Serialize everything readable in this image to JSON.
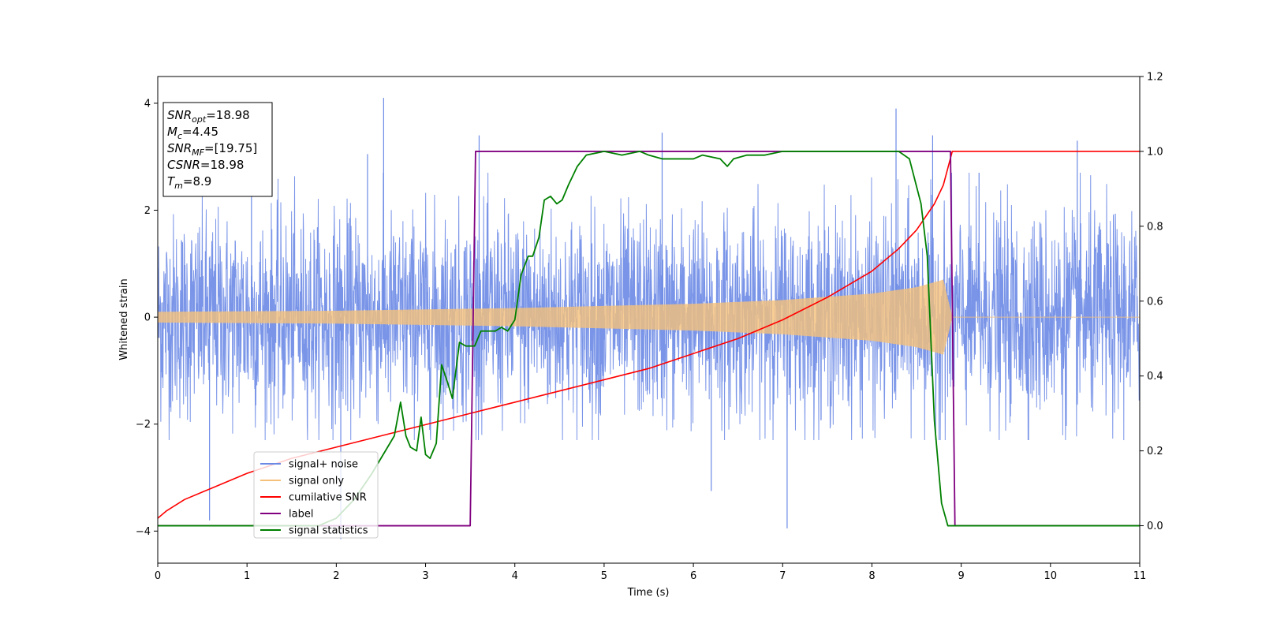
{
  "chart_data": {
    "type": "line",
    "xlabel": "Time (s)",
    "ylabel": "Whitened strain",
    "xlim": [
      0,
      11
    ],
    "ylim": [
      -4.6,
      4.5
    ],
    "y2lim": [
      -0.1,
      1.2
    ],
    "xticks": [
      0,
      1,
      2,
      3,
      4,
      5,
      6,
      7,
      8,
      9,
      10,
      11
    ],
    "yticks": [
      -4,
      -2,
      0,
      2,
      4
    ],
    "y2ticks": [
      0.0,
      0.2,
      0.4,
      0.6,
      0.8,
      1.0,
      1.2
    ],
    "xtick_labels": [
      "0",
      "1",
      "2",
      "3",
      "4",
      "5",
      "6",
      "7",
      "8",
      "9",
      "10",
      "11"
    ],
    "ytick_labels": [
      "−4",
      "−2",
      "0",
      "2",
      "4"
    ],
    "y2tick_labels": [
      "0.0",
      "0.2",
      "0.4",
      "0.6",
      "0.8",
      "1.0",
      "1.2"
    ],
    "grid": false,
    "legend_position": "lower-left",
    "legend": [
      {
        "label": "signal+ noise",
        "color": "#6b8ae5"
      },
      {
        "label": "signal only",
        "color": "#f5c07a"
      },
      {
        "label": "cumilative SNR",
        "color": "#ff0000"
      },
      {
        "label": "label",
        "color": "#800080"
      },
      {
        "label": "signal statistics",
        "color": "#008000"
      }
    ],
    "annotation": [
      {
        "main": "SNR",
        "sub": "opt",
        "value": "=18.98"
      },
      {
        "main": "M",
        "sub": "c",
        "value": "=4.45"
      },
      {
        "main": "SNR",
        "sub": "MF",
        "value": "=[19.75]"
      },
      {
        "main": "CSNR",
        "sub": "",
        "value": "=18.98"
      },
      {
        "main": "T",
        "sub": "m",
        "value": "=8.9"
      }
    ],
    "series": [
      {
        "name": "signal+ noise",
        "axis": "left",
        "color": "#6b8ae5",
        "description_of_values": "noise band roughly between -2.2 and 2.6 over 0-11 s, spikes up to about 4.1",
        "noise_sigma": 0.95,
        "peaks": [
          [
            0.58,
            -3.8
          ],
          [
            1.05,
            3.6
          ],
          [
            2.05,
            -4.15
          ],
          [
            2.35,
            3.05
          ],
          [
            2.53,
            4.1
          ],
          [
            3.6,
            3.4
          ],
          [
            5.65,
            3.45
          ],
          [
            6.2,
            -3.25
          ],
          [
            7.05,
            -3.95
          ],
          [
            8.27,
            3.9
          ],
          [
            8.68,
            3.4
          ],
          [
            9.2,
            2.7
          ],
          [
            10.3,
            3.3
          ]
        ]
      },
      {
        "name": "signal only",
        "axis": "left",
        "color": "#f5c07a",
        "description_of_values": "chirp, amplitude grows from about 0.1 at t=0 to about 0.7 near t=8.9, then 0",
        "amplitude_points": [
          [
            0,
            0.1
          ],
          [
            2,
            0.12
          ],
          [
            4,
            0.17
          ],
          [
            6,
            0.25
          ],
          [
            7,
            0.32
          ],
          [
            8,
            0.44
          ],
          [
            8.5,
            0.56
          ],
          [
            8.8,
            0.7
          ],
          [
            8.9,
            0.0
          ],
          [
            11,
            0.0
          ]
        ]
      },
      {
        "name": "cumilative SNR",
        "axis": "right",
        "color": "#ff0000",
        "x": [
          0,
          0.1,
          0.3,
          0.6,
          1.0,
          1.5,
          2.0,
          2.5,
          3.0,
          3.5,
          4.0,
          4.5,
          5.0,
          5.5,
          6.0,
          6.5,
          7.0,
          7.5,
          8.0,
          8.3,
          8.5,
          8.7,
          8.8,
          8.9,
          9.0,
          11.0
        ],
        "values": [
          0.02,
          0.04,
          0.07,
          0.1,
          0.14,
          0.18,
          0.21,
          0.24,
          0.27,
          0.3,
          0.33,
          0.36,
          0.39,
          0.42,
          0.46,
          0.5,
          0.55,
          0.61,
          0.68,
          0.74,
          0.79,
          0.86,
          0.91,
          1.0,
          1.0,
          1.0
        ]
      },
      {
        "name": "label",
        "axis": "right",
        "color": "#800080",
        "x": [
          0,
          3.5,
          3.56,
          8.88,
          8.93,
          11
        ],
        "values": [
          0,
          0,
          1,
          1,
          0,
          0
        ]
      },
      {
        "name": "signal statistics",
        "axis": "right",
        "color": "#008000",
        "x": [
          0,
          1.8,
          2.0,
          2.2,
          2.4,
          2.5,
          2.6,
          2.65,
          2.72,
          2.78,
          2.83,
          2.9,
          2.95,
          3.0,
          3.05,
          3.12,
          3.18,
          3.25,
          3.3,
          3.38,
          3.45,
          3.55,
          3.62,
          3.7,
          3.78,
          3.85,
          3.92,
          4.0,
          4.07,
          4.15,
          4.2,
          4.27,
          4.33,
          4.4,
          4.47,
          4.53,
          4.6,
          4.7,
          4.8,
          5.0,
          5.2,
          5.4,
          5.5,
          5.65,
          5.75,
          5.85,
          6.0,
          6.1,
          6.3,
          6.38,
          6.45,
          6.6,
          6.8,
          7.0,
          7.5,
          8.0,
          8.3,
          8.42,
          8.55,
          8.62,
          8.7,
          8.78,
          8.85,
          8.9,
          11.0
        ],
        "values": [
          0.0,
          0.0,
          0.02,
          0.07,
          0.14,
          0.18,
          0.22,
          0.24,
          0.33,
          0.24,
          0.21,
          0.2,
          0.29,
          0.19,
          0.18,
          0.22,
          0.43,
          0.38,
          0.34,
          0.49,
          0.48,
          0.48,
          0.52,
          0.52,
          0.52,
          0.53,
          0.52,
          0.55,
          0.67,
          0.72,
          0.72,
          0.77,
          0.87,
          0.88,
          0.86,
          0.87,
          0.91,
          0.96,
          0.99,
          1.0,
          0.99,
          1.0,
          0.99,
          0.98,
          0.98,
          0.98,
          0.98,
          0.99,
          0.98,
          0.96,
          0.98,
          0.99,
          0.99,
          1.0,
          1.0,
          1.0,
          1.0,
          0.98,
          0.86,
          0.72,
          0.28,
          0.06,
          0.0,
          0.0,
          0.0
        ]
      }
    ]
  }
}
